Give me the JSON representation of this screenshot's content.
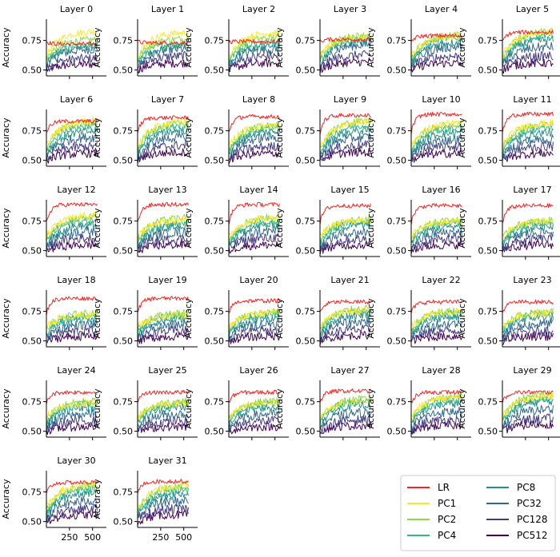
{
  "chart_data": {
    "type": "line",
    "title": "",
    "ylabel": "Accuracy",
    "xlim": [
      0,
      650
    ],
    "ylim": [
      0.45,
      0.93
    ],
    "xticks": [
      250,
      500
    ],
    "yticks": [
      0.5,
      0.75
    ],
    "ytick_labels": [
      "0.50",
      "0.75"
    ],
    "xtick_labels": [
      "250",
      "500"
    ],
    "steps": 55,
    "x_max": 550,
    "legend": {
      "position": "bottom-right",
      "entries": [
        {
          "name": "LR",
          "color": "#ff1f1f"
        },
        {
          "name": "PC1",
          "color": "#fde725"
        },
        {
          "name": "PC2",
          "color": "#8fd744"
        },
        {
          "name": "PC4",
          "color": "#35b779"
        },
        {
          "name": "PC8",
          "color": "#21918c"
        },
        {
          "name": "PC32",
          "color": "#31688e"
        },
        {
          "name": "PC128",
          "color": "#443a83"
        },
        {
          "name": "PC512",
          "color": "#440154"
        }
      ]
    },
    "panels": [
      {
        "title": "Layer 0",
        "final": {
          "LR": 0.72,
          "PC1": 0.83,
          "PC2": 0.76,
          "PC4": 0.72,
          "PC8": 0.7,
          "PC32": 0.68,
          "PC128": 0.6,
          "PC512": 0.55
        }
      },
      {
        "title": "Layer 1",
        "final": {
          "LR": 0.73,
          "PC1": 0.82,
          "PC2": 0.77,
          "PC4": 0.73,
          "PC8": 0.7,
          "PC32": 0.68,
          "PC128": 0.62,
          "PC512": 0.56
        }
      },
      {
        "title": "Layer 2",
        "final": {
          "LR": 0.74,
          "PC1": 0.82,
          "PC2": 0.78,
          "PC4": 0.74,
          "PC8": 0.71,
          "PC32": 0.68,
          "PC128": 0.62,
          "PC512": 0.56
        }
      },
      {
        "title": "Layer 3",
        "final": {
          "LR": 0.76,
          "PC1": 0.78,
          "PC2": 0.8,
          "PC4": 0.78,
          "PC8": 0.76,
          "PC32": 0.72,
          "PC128": 0.63,
          "PC512": 0.57
        }
      },
      {
        "title": "Layer 4",
        "final": {
          "LR": 0.79,
          "PC1": 0.79,
          "PC2": 0.8,
          "PC4": 0.78,
          "PC8": 0.74,
          "PC32": 0.7,
          "PC128": 0.62,
          "PC512": 0.56
        }
      },
      {
        "title": "Layer 5",
        "final": {
          "LR": 0.82,
          "PC1": 0.82,
          "PC2": 0.83,
          "PC4": 0.8,
          "PC8": 0.76,
          "PC32": 0.7,
          "PC128": 0.62,
          "PC512": 0.56
        }
      },
      {
        "title": "Layer 6",
        "final": {
          "LR": 0.83,
          "PC1": 0.84,
          "PC2": 0.83,
          "PC4": 0.8,
          "PC8": 0.75,
          "PC32": 0.7,
          "PC128": 0.62,
          "PC512": 0.56
        }
      },
      {
        "title": "Layer 7",
        "final": {
          "LR": 0.86,
          "PC1": 0.83,
          "PC2": 0.82,
          "PC4": 0.8,
          "PC8": 0.76,
          "PC32": 0.7,
          "PC128": 0.63,
          "PC512": 0.57
        }
      },
      {
        "title": "Layer 8",
        "final": {
          "LR": 0.87,
          "PC1": 0.8,
          "PC2": 0.8,
          "PC4": 0.78,
          "PC8": 0.75,
          "PC32": 0.7,
          "PC128": 0.62,
          "PC512": 0.56
        }
      },
      {
        "title": "Layer 9",
        "final": {
          "LR": 0.88,
          "PC1": 0.83,
          "PC2": 0.84,
          "PC4": 0.8,
          "PC8": 0.76,
          "PC32": 0.7,
          "PC128": 0.63,
          "PC512": 0.57
        }
      },
      {
        "title": "Layer 10",
        "final": {
          "LR": 0.89,
          "PC1": 0.82,
          "PC2": 0.81,
          "PC4": 0.78,
          "PC8": 0.74,
          "PC32": 0.68,
          "PC128": 0.62,
          "PC512": 0.56
        }
      },
      {
        "title": "Layer 11",
        "final": {
          "LR": 0.89,
          "PC1": 0.82,
          "PC2": 0.81,
          "PC4": 0.78,
          "PC8": 0.74,
          "PC32": 0.68,
          "PC128": 0.62,
          "PC512": 0.56
        }
      },
      {
        "title": "Layer 12",
        "final": {
          "LR": 0.89,
          "PC1": 0.8,
          "PC2": 0.79,
          "PC4": 0.76,
          "PC8": 0.72,
          "PC32": 0.67,
          "PC128": 0.61,
          "PC512": 0.55
        }
      },
      {
        "title": "Layer 13",
        "final": {
          "LR": 0.89,
          "PC1": 0.76,
          "PC2": 0.78,
          "PC4": 0.74,
          "PC8": 0.71,
          "PC32": 0.66,
          "PC128": 0.6,
          "PC512": 0.55
        }
      },
      {
        "title": "Layer 14",
        "final": {
          "LR": 0.89,
          "PC1": 0.78,
          "PC2": 0.79,
          "PC4": 0.75,
          "PC8": 0.72,
          "PC32": 0.67,
          "PC128": 0.61,
          "PC512": 0.55
        }
      },
      {
        "title": "Layer 15",
        "final": {
          "LR": 0.88,
          "PC1": 0.76,
          "PC2": 0.77,
          "PC4": 0.75,
          "PC8": 0.72,
          "PC32": 0.66,
          "PC128": 0.6,
          "PC512": 0.55
        }
      },
      {
        "title": "Layer 16",
        "final": {
          "LR": 0.88,
          "PC1": 0.75,
          "PC2": 0.76,
          "PC4": 0.74,
          "PC8": 0.71,
          "PC32": 0.66,
          "PC128": 0.6,
          "PC512": 0.55
        }
      },
      {
        "title": "Layer 17",
        "final": {
          "LR": 0.88,
          "PC1": 0.75,
          "PC2": 0.76,
          "PC4": 0.74,
          "PC8": 0.71,
          "PC32": 0.66,
          "PC128": 0.6,
          "PC512": 0.55
        }
      },
      {
        "title": "Layer 18",
        "final": {
          "LR": 0.86,
          "PC1": 0.72,
          "PC2": 0.74,
          "PC4": 0.72,
          "PC8": 0.69,
          "PC32": 0.64,
          "PC128": 0.59,
          "PC512": 0.54
        }
      },
      {
        "title": "Layer 19",
        "final": {
          "LR": 0.86,
          "PC1": 0.72,
          "PC2": 0.74,
          "PC4": 0.72,
          "PC8": 0.69,
          "PC32": 0.64,
          "PC128": 0.59,
          "PC512": 0.54
        }
      },
      {
        "title": "Layer 20",
        "final": {
          "LR": 0.84,
          "PC1": 0.74,
          "PC2": 0.75,
          "PC4": 0.73,
          "PC8": 0.7,
          "PC32": 0.65,
          "PC128": 0.59,
          "PC512": 0.54
        }
      },
      {
        "title": "Layer 21",
        "final": {
          "LR": 0.83,
          "PC1": 0.76,
          "PC2": 0.78,
          "PC4": 0.76,
          "PC8": 0.73,
          "PC32": 0.67,
          "PC128": 0.6,
          "PC512": 0.55
        }
      },
      {
        "title": "Layer 22",
        "final": {
          "LR": 0.83,
          "PC1": 0.75,
          "PC2": 0.76,
          "PC4": 0.74,
          "PC8": 0.71,
          "PC32": 0.65,
          "PC128": 0.59,
          "PC512": 0.54
        }
      },
      {
        "title": "Layer 23",
        "final": {
          "LR": 0.83,
          "PC1": 0.74,
          "PC2": 0.76,
          "PC4": 0.74,
          "PC8": 0.71,
          "PC32": 0.65,
          "PC128": 0.59,
          "PC512": 0.54
        }
      },
      {
        "title": "Layer 24",
        "final": {
          "LR": 0.83,
          "PC1": 0.74,
          "PC2": 0.76,
          "PC4": 0.74,
          "PC8": 0.71,
          "PC32": 0.65,
          "PC128": 0.59,
          "PC512": 0.54
        }
      },
      {
        "title": "Layer 25",
        "final": {
          "LR": 0.83,
          "PC1": 0.74,
          "PC2": 0.76,
          "PC4": 0.74,
          "PC8": 0.71,
          "PC32": 0.65,
          "PC128": 0.59,
          "PC512": 0.54
        }
      },
      {
        "title": "Layer 26",
        "final": {
          "LR": 0.83,
          "PC1": 0.74,
          "PC2": 0.76,
          "PC4": 0.74,
          "PC8": 0.71,
          "PC32": 0.65,
          "PC128": 0.59,
          "PC512": 0.54
        }
      },
      {
        "title": "Layer 27",
        "final": {
          "LR": 0.84,
          "PC1": 0.76,
          "PC2": 0.78,
          "PC4": 0.76,
          "PC8": 0.73,
          "PC32": 0.66,
          "PC128": 0.6,
          "PC512": 0.55
        }
      },
      {
        "title": "Layer 28",
        "final": {
          "LR": 0.83,
          "PC1": 0.79,
          "PC2": 0.8,
          "PC4": 0.77,
          "PC8": 0.74,
          "PC32": 0.67,
          "PC128": 0.6,
          "PC512": 0.55
        }
      },
      {
        "title": "Layer 29",
        "final": {
          "LR": 0.83,
          "PC1": 0.8,
          "PC2": 0.82,
          "PC4": 0.79,
          "PC8": 0.76,
          "PC32": 0.69,
          "PC128": 0.61,
          "PC512": 0.56
        }
      },
      {
        "title": "Layer 30",
        "final": {
          "LR": 0.83,
          "PC1": 0.82,
          "PC2": 0.81,
          "PC4": 0.78,
          "PC8": 0.75,
          "PC32": 0.68,
          "PC128": 0.61,
          "PC512": 0.56
        }
      },
      {
        "title": "Layer 31",
        "final": {
          "LR": 0.84,
          "PC1": 0.81,
          "PC2": 0.8,
          "PC4": 0.77,
          "PC8": 0.74,
          "PC32": 0.68,
          "PC128": 0.61,
          "PC512": 0.56
        }
      }
    ]
  }
}
